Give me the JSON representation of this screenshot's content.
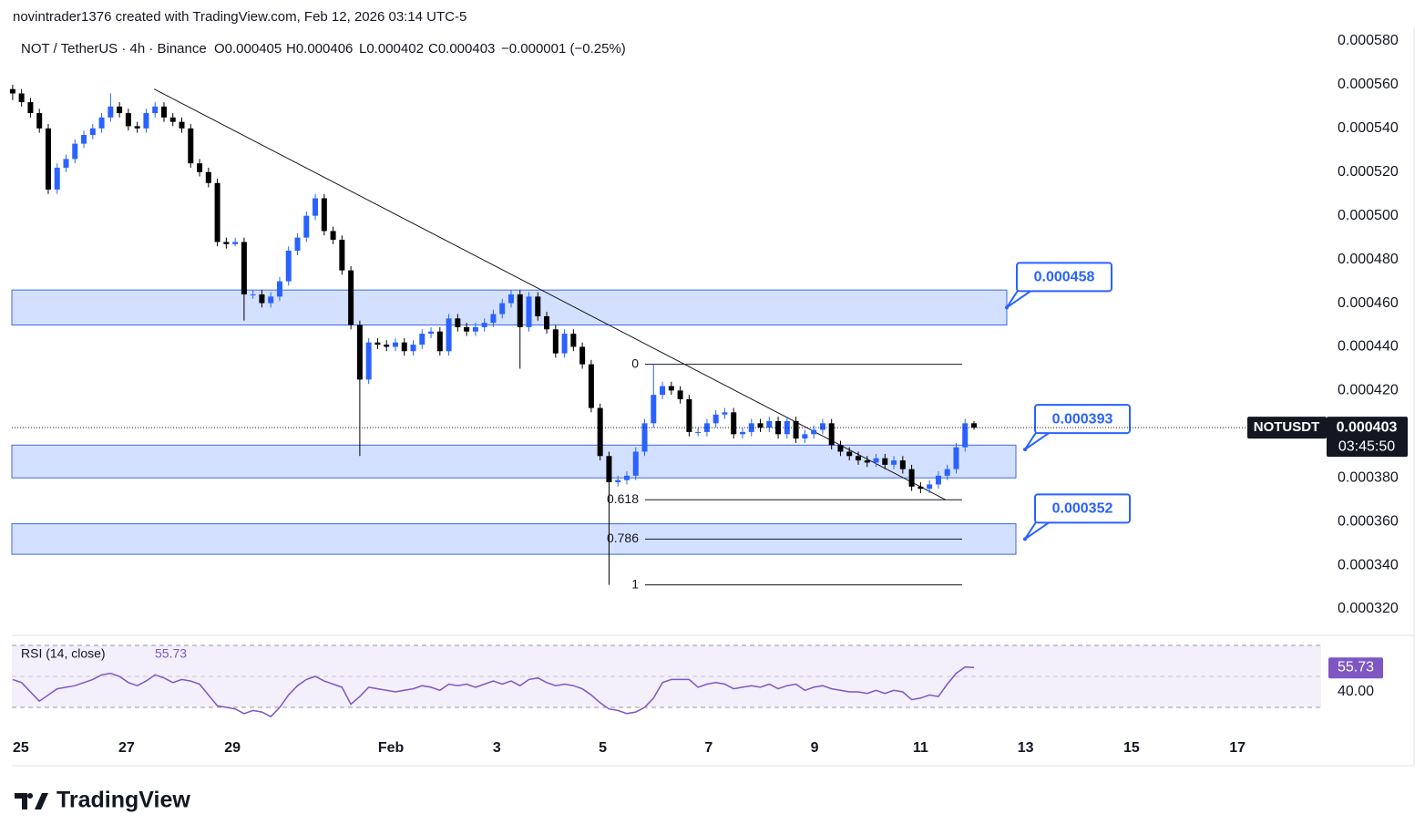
{
  "header": {
    "attribution": "novintrader1376 created with TradingView.com, Feb 12, 2026 03:14 UTC-5"
  },
  "chart_data": {
    "type": "candlestick",
    "legend": {
      "symbol": "NOT / TetherUS · 4h · Binance",
      "open": "O0.000405",
      "high": "H0.000406",
      "low": "L0.000402",
      "close": "C0.000403",
      "change": "−0.000001 (−0.25%)"
    },
    "up_color": "#2962ff",
    "down_color": "#000000",
    "xlim": [
      -0.5,
      147
    ],
    "xticks": [
      {
        "value": 0.92,
        "label": "25"
      },
      {
        "value": 12.8,
        "label": "27"
      },
      {
        "value": 24.7,
        "label": "29"
      },
      {
        "value": 42.5,
        "label": "Feb"
      },
      {
        "value": 54.4,
        "label": "3"
      },
      {
        "value": 66.3,
        "label": "5"
      },
      {
        "value": 78.2,
        "label": "7"
      },
      {
        "value": 90.1,
        "label": "9"
      },
      {
        "value": 102,
        "label": "11"
      },
      {
        "value": 113.8,
        "label": "13"
      },
      {
        "value": 125.7,
        "label": "15"
      },
      {
        "value": 137.6,
        "label": "17"
      }
    ],
    "ylim": [
      0.00032,
      0.00058
    ],
    "yticks": [
      {
        "value": 0.00058,
        "label": "0.000580"
      },
      {
        "value": 0.00056,
        "label": "0.000560"
      },
      {
        "value": 0.00054,
        "label": "0.000540"
      },
      {
        "value": 0.00052,
        "label": "0.000520"
      },
      {
        "value": 0.0005,
        "label": "0.000500"
      },
      {
        "value": 0.00048,
        "label": "0.000480"
      },
      {
        "value": 0.00046,
        "label": "0.000460"
      },
      {
        "value": 0.00044,
        "label": "0.000440"
      },
      {
        "value": 0.00042,
        "label": "0.000420"
      },
      {
        "value": 0.0004,
        "label": "0.000400"
      },
      {
        "value": 0.00038,
        "label": "0.000380"
      },
      {
        "value": 0.00036,
        "label": "0.000360"
      },
      {
        "value": 0.00034,
        "label": "0.000340"
      },
      {
        "value": 0.00032,
        "label": "0.000320"
      }
    ],
    "candles": [
      [
        0.000558,
        0.00056,
        0.000553,
        0.000556
      ],
      [
        0.000556,
        0.000558,
        0.00055,
        0.000552
      ],
      [
        0.000552,
        0.000554,
        0.000545,
        0.000547
      ],
      [
        0.000547,
        0.000549,
        0.000538,
        0.00054
      ],
      [
        0.00054,
        0.000542,
        0.00051,
        0.000512
      ],
      [
        0.000512,
        0.000524,
        0.00051,
        0.000522
      ],
      [
        0.000522,
        0.000528,
        0.00052,
        0.000526
      ],
      [
        0.000526,
        0.000535,
        0.000524,
        0.000533
      ],
      [
        0.000533,
        0.000539,
        0.000531,
        0.000537
      ],
      [
        0.000537,
        0.000542,
        0.000535,
        0.00054
      ],
      [
        0.00054,
        0.000547,
        0.000538,
        0.000545
      ],
      [
        0.000545,
        0.000556,
        0.000543,
        0.00055
      ],
      [
        0.00055,
        0.000552,
        0.000545,
        0.000547
      ],
      [
        0.000547,
        0.000549,
        0.000539,
        0.000541
      ],
      [
        0.000541,
        0.000543,
        0.000538,
        0.00054
      ],
      [
        0.00054,
        0.000549,
        0.000538,
        0.000547
      ],
      [
        0.000547,
        0.000552,
        0.000545,
        0.00055
      ],
      [
        0.00055,
        0.000552,
        0.000543,
        0.000545
      ],
      [
        0.000545,
        0.000547,
        0.000541,
        0.000543
      ],
      [
        0.000543,
        0.000545,
        0.000538,
        0.00054
      ],
      [
        0.00054,
        0.000542,
        0.000522,
        0.000524
      ],
      [
        0.000524,
        0.000526,
        0.000518,
        0.00052
      ],
      [
        0.00052,
        0.000522,
        0.000513,
        0.000515
      ],
      [
        0.000515,
        0.000517,
        0.000486,
        0.000488
      ],
      [
        0.000488,
        0.00049,
        0.000485,
        0.000487
      ],
      [
        0.000487,
        0.00049,
        0.000486,
        0.000488
      ],
      [
        0.000488,
        0.00049,
        0.000452,
        0.000464
      ],
      [
        0.000464,
        0.000466,
        0.000462,
        0.000464
      ],
      [
        0.000464,
        0.000466,
        0.000458,
        0.00046
      ],
      [
        0.00046,
        0.000465,
        0.000458,
        0.000463
      ],
      [
        0.000463,
        0.000472,
        0.000461,
        0.00047
      ],
      [
        0.00047,
        0.000486,
        0.000468,
        0.000484
      ],
      [
        0.000484,
        0.000492,
        0.000482,
        0.00049
      ],
      [
        0.00049,
        0.000502,
        0.000488,
        0.0005
      ],
      [
        0.0005,
        0.00051,
        0.000498,
        0.000508
      ],
      [
        0.000508,
        0.00051,
        0.000491,
        0.000493
      ],
      [
        0.000493,
        0.000495,
        0.000487,
        0.000489
      ],
      [
        0.000489,
        0.000491,
        0.000473,
        0.000475
      ],
      [
        0.000475,
        0.000477,
        0.000448,
        0.00045
      ],
      [
        0.00045,
        0.000452,
        0.00039,
        0.000425
      ],
      [
        0.000425,
        0.000444,
        0.000423,
        0.000442
      ],
      [
        0.000442,
        0.000444,
        0.000439,
        0.000441
      ],
      [
        0.000441,
        0.000443,
        0.000438,
        0.00044
      ],
      [
        0.00044,
        0.000444,
        0.000438,
        0.000442
      ],
      [
        0.000442,
        0.000444,
        0.000436,
        0.000438
      ],
      [
        0.000438,
        0.000443,
        0.000436,
        0.000441
      ],
      [
        0.000441,
        0.000448,
        0.000439,
        0.000446
      ],
      [
        0.000446,
        0.000449,
        0.000444,
        0.000447
      ],
      [
        0.000447,
        0.000449,
        0.000436,
        0.000438
      ],
      [
        0.000438,
        0.000455,
        0.000436,
        0.000453
      ],
      [
        0.000453,
        0.000455,
        0.000447,
        0.000449
      ],
      [
        0.000449,
        0.000451,
        0.000445,
        0.000447
      ],
      [
        0.000447,
        0.000451,
        0.000445,
        0.000449
      ],
      [
        0.000449,
        0.000453,
        0.000447,
        0.000451
      ],
      [
        0.000451,
        0.000457,
        0.000449,
        0.000455
      ],
      [
        0.000455,
        0.000462,
        0.000453,
        0.00046
      ],
      [
        0.00046,
        0.000466,
        0.000458,
        0.000464
      ],
      [
        0.000464,
        0.000466,
        0.00043,
        0.000449
      ],
      [
        0.000449,
        0.000465,
        0.000447,
        0.000463
      ],
      [
        0.000463,
        0.000465,
        0.000452,
        0.000454
      ],
      [
        0.000454,
        0.000456,
        0.000446,
        0.000448
      ],
      [
        0.000448,
        0.00045,
        0.000435,
        0.000437
      ],
      [
        0.000437,
        0.000448,
        0.000435,
        0.000446
      ],
      [
        0.000446,
        0.000448,
        0.000438,
        0.00044
      ],
      [
        0.00044,
        0.000442,
        0.00043,
        0.000432
      ],
      [
        0.000432,
        0.000434,
        0.00041,
        0.000412
      ],
      [
        0.000412,
        0.000414,
        0.000388,
        0.00039
      ],
      [
        0.00039,
        0.000392,
        0.000331,
        0.000378
      ],
      [
        0.000378,
        0.000381,
        0.000376,
        0.000379
      ],
      [
        0.000379,
        0.000383,
        0.000377,
        0.000381
      ],
      [
        0.000381,
        0.000394,
        0.000379,
        0.000392
      ],
      [
        0.000392,
        0.000407,
        0.00039,
        0.000405
      ],
      [
        0.000405,
        0.000432,
        0.000403,
        0.000418
      ],
      [
        0.000418,
        0.000424,
        0.000416,
        0.000422
      ],
      [
        0.000422,
        0.000424,
        0.000418,
        0.00042
      ],
      [
        0.00042,
        0.000422,
        0.000414,
        0.000416
      ],
      [
        0.000416,
        0.000418,
        0.000399,
        0.000401
      ],
      [
        0.000401,
        0.000403,
        0.000399,
        0.000401
      ],
      [
        0.000401,
        0.000407,
        0.000399,
        0.000405
      ],
      [
        0.000405,
        0.000411,
        0.000403,
        0.000409
      ],
      [
        0.000409,
        0.000412,
        0.000407,
        0.00041
      ],
      [
        0.00041,
        0.000412,
        0.000398,
        0.0004
      ],
      [
        0.0004,
        0.000403,
        0.000398,
        0.000401
      ],
      [
        0.000401,
        0.000407,
        0.000399,
        0.000405
      ],
      [
        0.000405,
        0.000407,
        0.000401,
        0.000403
      ],
      [
        0.000403,
        0.000408,
        0.000401,
        0.000406
      ],
      [
        0.000406,
        0.000408,
        0.000398,
        0.0004
      ],
      [
        0.0004,
        0.000408,
        0.000398,
        0.000406
      ],
      [
        0.000406,
        0.000408,
        0.000396,
        0.000398
      ],
      [
        0.000398,
        0.000402,
        0.000396,
        0.0004
      ],
      [
        0.0004,
        0.000404,
        0.000398,
        0.000402
      ],
      [
        0.000402,
        0.000407,
        0.0004,
        0.000405
      ],
      [
        0.000405,
        0.000407,
        0.000393,
        0.000395
      ],
      [
        0.000395,
        0.000397,
        0.00039,
        0.000392
      ],
      [
        0.000392,
        0.000394,
        0.000388,
        0.00039
      ],
      [
        0.00039,
        0.000392,
        0.000386,
        0.000388
      ],
      [
        0.000388,
        0.00039,
        0.000385,
        0.000387
      ],
      [
        0.000387,
        0.000391,
        0.000385,
        0.000389
      ],
      [
        0.000389,
        0.000391,
        0.000384,
        0.000386
      ],
      [
        0.000386,
        0.00039,
        0.000384,
        0.000388
      ],
      [
        0.000388,
        0.00039,
        0.000382,
        0.000384
      ],
      [
        0.000384,
        0.000386,
        0.000374,
        0.000376
      ],
      [
        0.000376,
        0.000378,
        0.000373,
        0.000375
      ],
      [
        0.000375,
        0.000379,
        0.000373,
        0.000377
      ],
      [
        0.000377,
        0.000383,
        0.000375,
        0.000381
      ],
      [
        0.000381,
        0.000386,
        0.000379,
        0.000384
      ],
      [
        0.000384,
        0.000396,
        0.000382,
        0.000394
      ],
      [
        0.000394,
        0.000407,
        0.000392,
        0.000405
      ],
      [
        0.000405,
        0.000406,
        0.000402,
        0.000403
      ]
    ],
    "zones": [
      {
        "low": 0.00045,
        "high": 0.000466
      },
      {
        "low": 0.00038,
        "high": 0.000395
      },
      {
        "low": 0.000345,
        "high": 0.000359
      }
    ],
    "callouts": [
      0.000458,
      0.000393,
      0.000352
    ],
    "trendline": {
      "x": [
        15.9,
        104.8
      ],
      "y": [
        0.000558,
        0.00037
      ]
    },
    "fib": [
      {
        "ratio": 0,
        "price": 0.000432
      },
      {
        "ratio": 0.618,
        "price": 0.00037
      },
      {
        "ratio": 0.786,
        "price": 0.000352
      },
      {
        "ratio": 1,
        "price": 0.000331
      }
    ],
    "last_price": {
      "symbol": "NOTUSDT",
      "value": 0.000403,
      "countdown": "03:45:50"
    },
    "rsi": {
      "title": "RSI (14, close)",
      "color": "#7e57c2",
      "ylim": [
        20,
        75
      ],
      "levels": [
        70,
        50,
        30
      ],
      "yticks": [
        {
          "value": 40,
          "label": "40.00"
        }
      ],
      "values": [
        48,
        46,
        40,
        34,
        38,
        42,
        43,
        44,
        46,
        48,
        51,
        52,
        50,
        46,
        44,
        47,
        51,
        49,
        46,
        48,
        47,
        45,
        38,
        31,
        30,
        29,
        26,
        28,
        27,
        24,
        30,
        38,
        44,
        48,
        50,
        47,
        45,
        43,
        32,
        37,
        43,
        42,
        41,
        40,
        41,
        42,
        44,
        43,
        41,
        45,
        44,
        45,
        43,
        45,
        47,
        45,
        47,
        44,
        48,
        49,
        46,
        44,
        45,
        44,
        42,
        38,
        33,
        29,
        28,
        26,
        27,
        30,
        36,
        46,
        48,
        48,
        48,
        43,
        45,
        46,
        45,
        42,
        43,
        44,
        43,
        45,
        42,
        44,
        45,
        41,
        43,
        44,
        42,
        41,
        40,
        40,
        39,
        41,
        39,
        41,
        40,
        35,
        36,
        38,
        37,
        45,
        52,
        56,
        55.73
      ]
    }
  },
  "footer": {
    "brand": "TradingView"
  }
}
